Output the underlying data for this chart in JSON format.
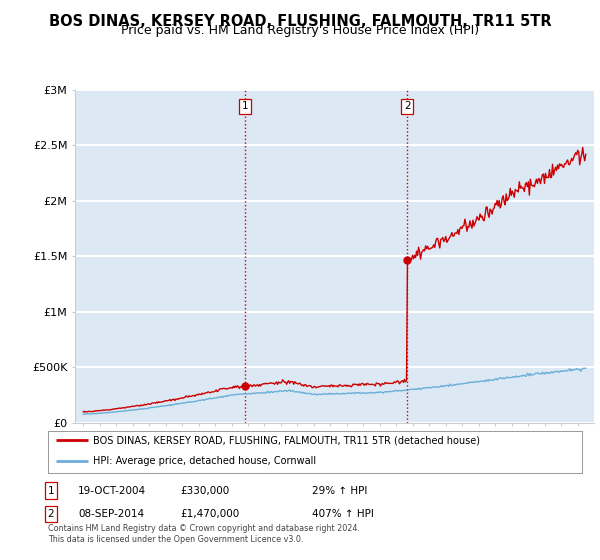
{
  "title": "BOS DINAS, KERSEY ROAD, FLUSHING, FALMOUTH, TR11 5TR",
  "subtitle": "Price paid vs. HM Land Registry's House Price Index (HPI)",
  "title_fontsize": 10.5,
  "subtitle_fontsize": 9,
  "ylim": [
    0,
    3000000
  ],
  "yticks": [
    0,
    500000,
    1000000,
    1500000,
    2000000,
    2500000,
    3000000
  ],
  "ytick_labels": [
    "£0",
    "£500K",
    "£1M",
    "£1.5M",
    "£2M",
    "£2.5M",
    "£3M"
  ],
  "xlim_start": 1994.5,
  "xlim_end": 2026.0,
  "plot_bg_color": "#dce9f5",
  "outside_bg_color": "#ffffff",
  "grid_color": "#ffffff",
  "hpi_color": "#6baed6",
  "price_color": "#cc0000",
  "transaction1_year": 2004.8,
  "transaction1_price": 330000,
  "transaction2_year": 2014.67,
  "transaction2_price": 1470000,
  "legend_label_price": "BOS DINAS, KERSEY ROAD, FLUSHING, FALMOUTH, TR11 5TR (detached house)",
  "legend_label_hpi": "HPI: Average price, detached house, Cornwall",
  "annotation1": "1",
  "annotation2": "2",
  "footer_line1": "Contains HM Land Registry data © Crown copyright and database right 2024.",
  "footer_line2": "This data is licensed under the Open Government Licence v3.0.",
  "table_row1": [
    "1",
    "19-OCT-2004",
    "£330,000",
    "29% ↑ HPI"
  ],
  "table_row2": [
    "2",
    "08-SEP-2014",
    "£1,470,000",
    "407% ↑ HPI"
  ]
}
